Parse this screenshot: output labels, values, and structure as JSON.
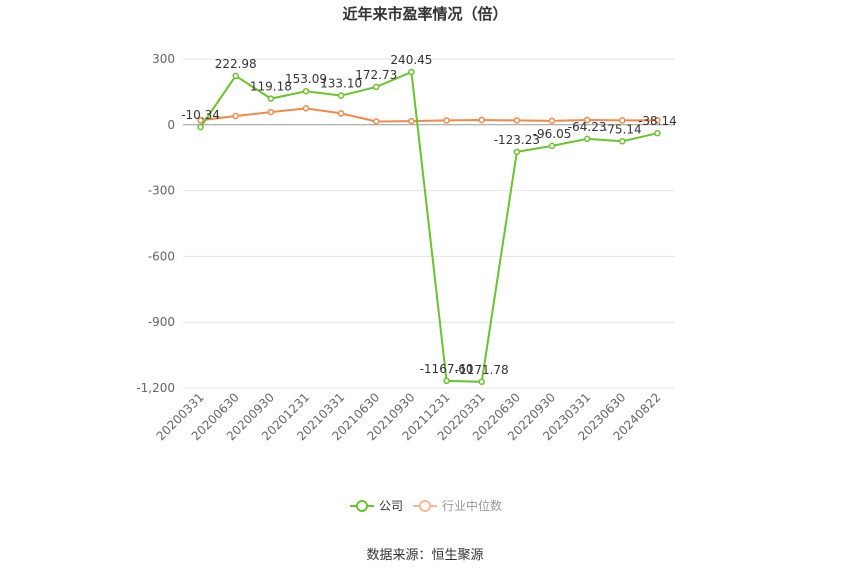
{
  "chart_data": {
    "type": "line",
    "title": "近年来市盈率情况（倍）",
    "categories": [
      "20200331",
      "20200630",
      "20200930",
      "20201231",
      "20210331",
      "20210630",
      "20210930",
      "20211231",
      "20220331",
      "20220630",
      "20220930",
      "20230331",
      "20230630",
      "20240822"
    ],
    "series": [
      {
        "name": "公司",
        "color": "#6ac22f",
        "values": [
          -10.34,
          222.98,
          119.18,
          153.09,
          133.1,
          172.73,
          240.45,
          -1167.6,
          -1171.78,
          -123.23,
          -96.05,
          -64.23,
          -75.14,
          -38.14
        ],
        "labels": [
          "-10.34",
          "222.98",
          "119.18",
          "153.09",
          "133.10",
          "172.73",
          "240.45",
          "-1167.60",
          "-1171.78",
          "-123.23",
          "-96.05",
          "-64.23",
          "-75.14",
          "-38.14"
        ]
      },
      {
        "name": "行业中位数",
        "color": "#f08a4b",
        "values": [
          20,
          40,
          58,
          75,
          52,
          15,
          17,
          20,
          22,
          20,
          18,
          22,
          20,
          21
        ]
      }
    ],
    "yticks": [
      300,
      0,
      -300,
      -600,
      -900,
      -1200
    ],
    "ytick_labels": [
      "300",
      "0",
      "-300",
      "-600",
      "-900",
      "-1,200"
    ],
    "ylim": [
      -1200,
      300
    ],
    "grid": true,
    "legend_position": "bottom"
  },
  "source": "数据来源：恒生聚源"
}
